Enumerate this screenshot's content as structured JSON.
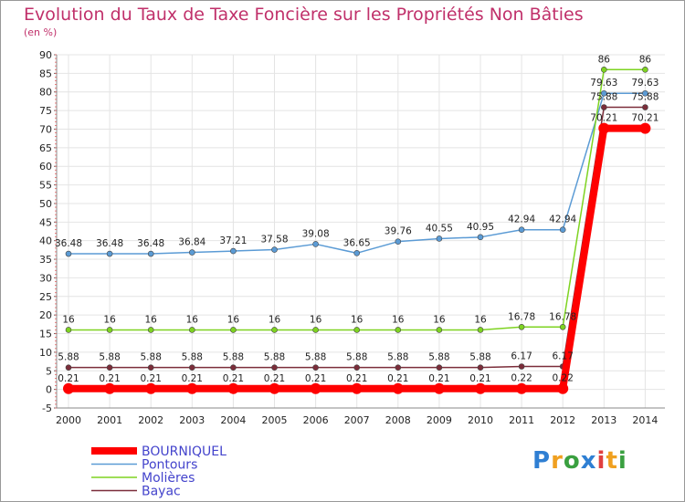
{
  "chart_data": {
    "type": "line",
    "title": "Evolution du Taux de Taxe Foncière sur les Propriétés Non Bâties",
    "ylabel": "(en %)",
    "xlabel": "",
    "ylim": [
      -5,
      90
    ],
    "ytick_step": 5,
    "x": [
      "2000",
      "2001",
      "2002",
      "2003",
      "2004",
      "2005",
      "2006",
      "2007",
      "2008",
      "2009",
      "2010",
      "2011",
      "2012",
      "2013",
      "2014"
    ],
    "series": [
      {
        "name": "BOURNIQUEL",
        "color": "#ff0000",
        "highlight": true,
        "values": [
          0.21,
          0.21,
          0.21,
          0.21,
          0.21,
          0.21,
          0.21,
          0.21,
          0.21,
          0.21,
          0.21,
          0.22,
          0.22,
          70.21,
          70.21
        ],
        "labels": [
          "0.21",
          "0.21",
          "0.21",
          "0.21",
          "0.21",
          "0.21",
          "0.21",
          "0.21",
          "0.21",
          "0.21",
          "0.21",
          "0.22",
          "0.22",
          "70.21",
          "70.21"
        ]
      },
      {
        "name": "Pontours",
        "color": "#5b9bd5",
        "values": [
          36.48,
          36.48,
          36.48,
          36.84,
          37.21,
          37.58,
          39.08,
          36.65,
          39.76,
          40.55,
          40.95,
          42.94,
          42.94,
          79.63,
          79.63
        ],
        "labels": [
          "36.48",
          "36.48",
          "36.48",
          "36.84",
          "37.21",
          "37.58",
          "39.08",
          "36.65",
          "39.76",
          "40.55",
          "40.95",
          "42.94",
          "42.94",
          "79.63",
          "79.63"
        ]
      },
      {
        "name": "Molières",
        "color": "#7ed321",
        "values": [
          16,
          16,
          16,
          16,
          16,
          16,
          16,
          16,
          16,
          16,
          16,
          16.78,
          16.78,
          86,
          86
        ],
        "labels": [
          "16",
          "16",
          "16",
          "16",
          "16",
          "16",
          "16",
          "16",
          "16",
          "16",
          "16",
          "16.78",
          "16.78",
          "86",
          "86"
        ]
      },
      {
        "name": "Bayac",
        "color": "#7b2d3a",
        "values": [
          5.88,
          5.88,
          5.88,
          5.88,
          5.88,
          5.88,
          5.88,
          5.88,
          5.88,
          5.88,
          5.88,
          6.17,
          6.17,
          75.88,
          75.88
        ],
        "labels": [
          "5.88",
          "5.88",
          "5.88",
          "5.88",
          "5.88",
          "5.88",
          "5.88",
          "5.88",
          "5.88",
          "5.88",
          "5.88",
          "6.17",
          "6.17",
          "75.88",
          "75.88"
        ]
      }
    ],
    "legend_position": "bottom-left",
    "grid": true
  },
  "brand": {
    "letters": [
      "P",
      "r",
      "o",
      "x",
      "i",
      "t",
      "i"
    ],
    "colors": [
      "#2f7fd3",
      "#f0a020",
      "#3aa040",
      "#2f7fd3",
      "#e04040",
      "#f0a020",
      "#3aa040"
    ]
  }
}
